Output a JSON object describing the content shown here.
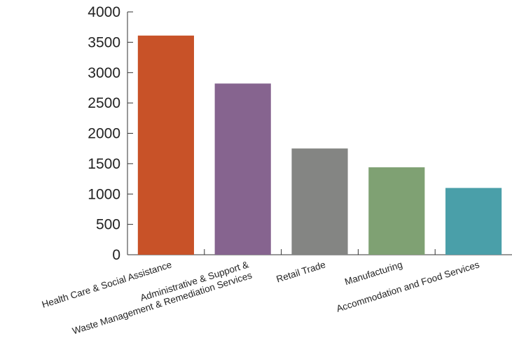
{
  "chart_data": {
    "type": "bar",
    "title": "",
    "xlabel": "",
    "ylabel": "",
    "ylim": [
      0,
      4000
    ],
    "yticks": [
      0,
      500,
      1000,
      1500,
      2000,
      2500,
      3000,
      3500,
      4000
    ],
    "ytick_labels": [
      "0",
      "500",
      "1000",
      "1500",
      "2000",
      "2500",
      "3000",
      "3500",
      "4000"
    ],
    "grid": false,
    "legend": "none",
    "categories": [
      [
        "Health Care & Social Assistance"
      ],
      [
        "Administrative & Support &",
        "Waste Management & Remediation Services"
      ],
      [
        "Retail Trade"
      ],
      [
        "Manufacturing"
      ],
      [
        "Accommodation and Food Services"
      ]
    ],
    "values": [
      3610,
      2820,
      1750,
      1440,
      1100
    ],
    "colors": [
      "#c85228",
      "#86648f",
      "#848583",
      "#7fa173",
      "#4a9fa9"
    ]
  }
}
